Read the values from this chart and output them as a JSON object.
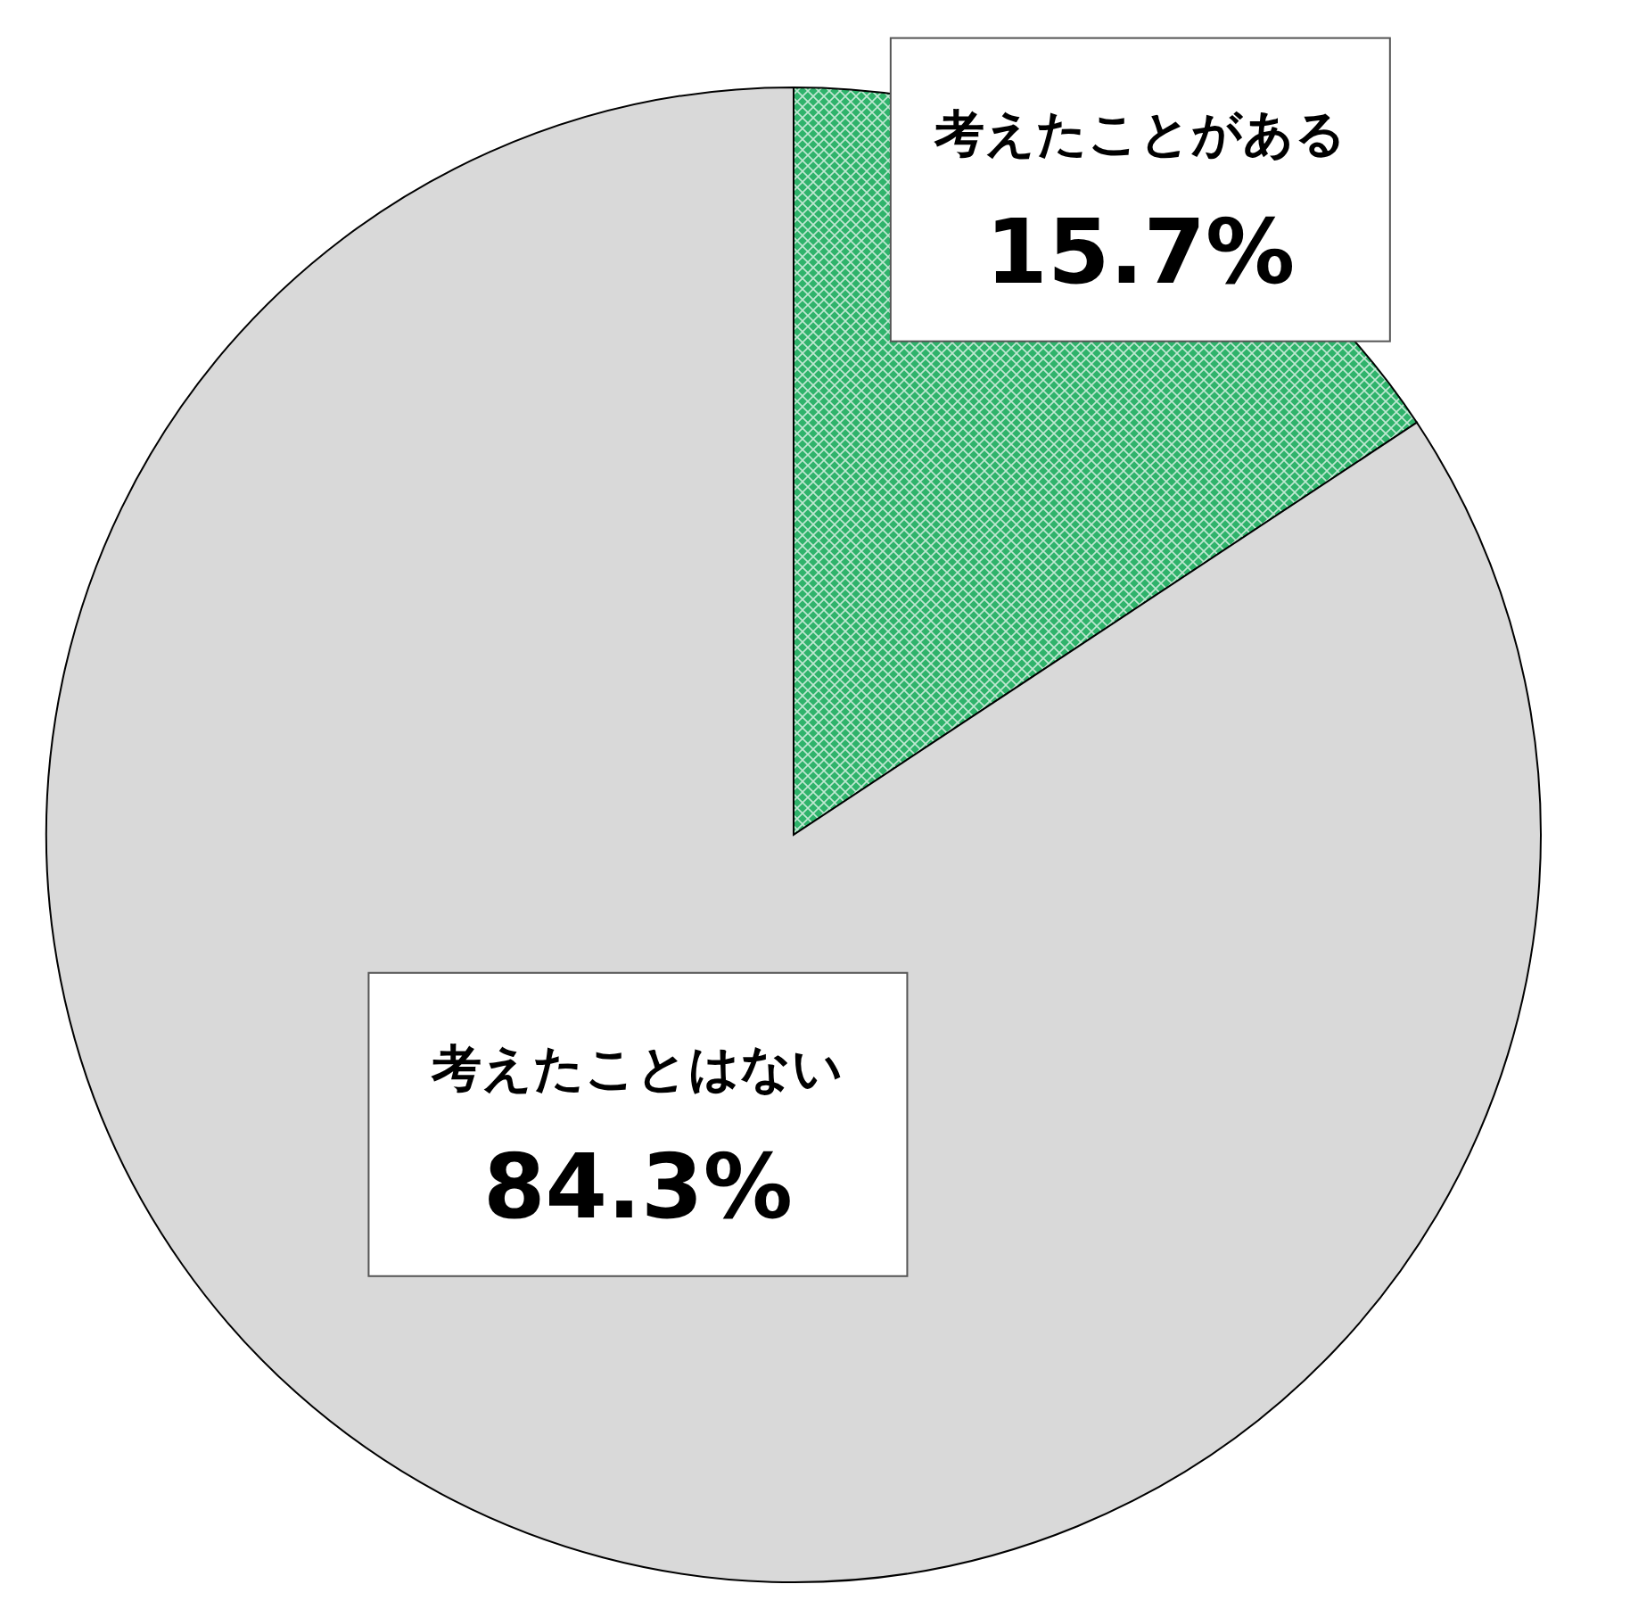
{
  "chart_data": {
    "type": "pie",
    "categories": [
      "考えたことがある",
      "考えたことはない"
    ],
    "values": [
      15.7,
      84.3
    ],
    "colors": [
      "#2fb36b",
      "#d9d9d9"
    ],
    "value_labels": [
      "15.7%",
      "84.3%"
    ]
  }
}
